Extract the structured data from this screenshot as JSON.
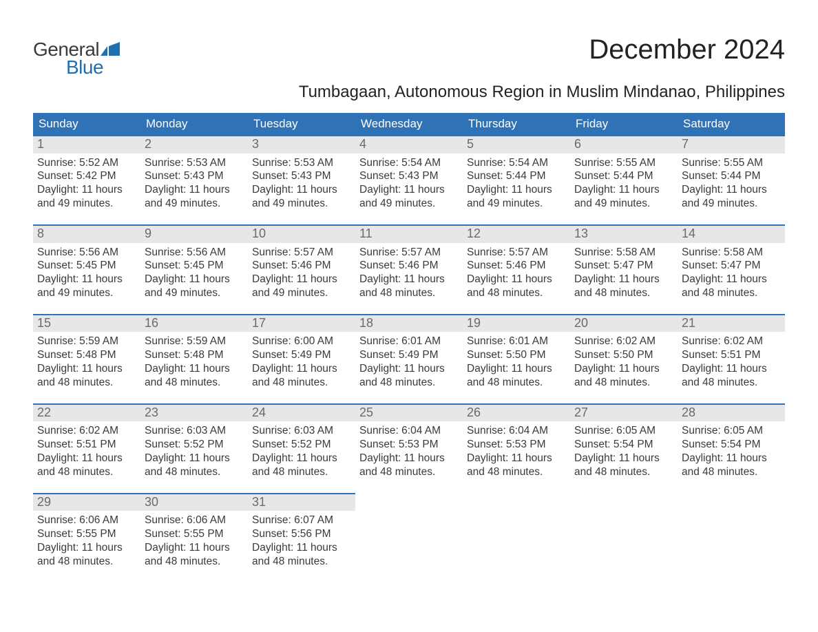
{
  "logo": {
    "word1": "General",
    "word2": "Blue",
    "icon_color": "#1f6fb2"
  },
  "title": "December 2024",
  "subtitle": "Tumbagaan, Autonomous Region in Muslim Mindanao, Philippines",
  "colors": {
    "header_bg": "#2f73b6",
    "header_text": "#ffffff",
    "daynum_bg": "#e7e7e7",
    "daynum_text": "#6a6a6a",
    "body_text": "#3a3a3a",
    "rule": "#2f73b6",
    "background": "#ffffff"
  },
  "typography": {
    "title_fontsize": 40,
    "subtitle_fontsize": 24,
    "dayheader_fontsize": 17,
    "daynum_fontsize": 18,
    "body_fontsize": 15.5
  },
  "day_headers": [
    "Sunday",
    "Monday",
    "Tuesday",
    "Wednesday",
    "Thursday",
    "Friday",
    "Saturday"
  ],
  "weeks": [
    [
      {
        "n": "1",
        "sunrise": "Sunrise: 5:52 AM",
        "sunset": "Sunset: 5:42 PM",
        "dl1": "Daylight: 11 hours",
        "dl2": "and 49 minutes."
      },
      {
        "n": "2",
        "sunrise": "Sunrise: 5:53 AM",
        "sunset": "Sunset: 5:43 PM",
        "dl1": "Daylight: 11 hours",
        "dl2": "and 49 minutes."
      },
      {
        "n": "3",
        "sunrise": "Sunrise: 5:53 AM",
        "sunset": "Sunset: 5:43 PM",
        "dl1": "Daylight: 11 hours",
        "dl2": "and 49 minutes."
      },
      {
        "n": "4",
        "sunrise": "Sunrise: 5:54 AM",
        "sunset": "Sunset: 5:43 PM",
        "dl1": "Daylight: 11 hours",
        "dl2": "and 49 minutes."
      },
      {
        "n": "5",
        "sunrise": "Sunrise: 5:54 AM",
        "sunset": "Sunset: 5:44 PM",
        "dl1": "Daylight: 11 hours",
        "dl2": "and 49 minutes."
      },
      {
        "n": "6",
        "sunrise": "Sunrise: 5:55 AM",
        "sunset": "Sunset: 5:44 PM",
        "dl1": "Daylight: 11 hours",
        "dl2": "and 49 minutes."
      },
      {
        "n": "7",
        "sunrise": "Sunrise: 5:55 AM",
        "sunset": "Sunset: 5:44 PM",
        "dl1": "Daylight: 11 hours",
        "dl2": "and 49 minutes."
      }
    ],
    [
      {
        "n": "8",
        "sunrise": "Sunrise: 5:56 AM",
        "sunset": "Sunset: 5:45 PM",
        "dl1": "Daylight: 11 hours",
        "dl2": "and 49 minutes."
      },
      {
        "n": "9",
        "sunrise": "Sunrise: 5:56 AM",
        "sunset": "Sunset: 5:45 PM",
        "dl1": "Daylight: 11 hours",
        "dl2": "and 49 minutes."
      },
      {
        "n": "10",
        "sunrise": "Sunrise: 5:57 AM",
        "sunset": "Sunset: 5:46 PM",
        "dl1": "Daylight: 11 hours",
        "dl2": "and 49 minutes."
      },
      {
        "n": "11",
        "sunrise": "Sunrise: 5:57 AM",
        "sunset": "Sunset: 5:46 PM",
        "dl1": "Daylight: 11 hours",
        "dl2": "and 48 minutes."
      },
      {
        "n": "12",
        "sunrise": "Sunrise: 5:57 AM",
        "sunset": "Sunset: 5:46 PM",
        "dl1": "Daylight: 11 hours",
        "dl2": "and 48 minutes."
      },
      {
        "n": "13",
        "sunrise": "Sunrise: 5:58 AM",
        "sunset": "Sunset: 5:47 PM",
        "dl1": "Daylight: 11 hours",
        "dl2": "and 48 minutes."
      },
      {
        "n": "14",
        "sunrise": "Sunrise: 5:58 AM",
        "sunset": "Sunset: 5:47 PM",
        "dl1": "Daylight: 11 hours",
        "dl2": "and 48 minutes."
      }
    ],
    [
      {
        "n": "15",
        "sunrise": "Sunrise: 5:59 AM",
        "sunset": "Sunset: 5:48 PM",
        "dl1": "Daylight: 11 hours",
        "dl2": "and 48 minutes."
      },
      {
        "n": "16",
        "sunrise": "Sunrise: 5:59 AM",
        "sunset": "Sunset: 5:48 PM",
        "dl1": "Daylight: 11 hours",
        "dl2": "and 48 minutes."
      },
      {
        "n": "17",
        "sunrise": "Sunrise: 6:00 AM",
        "sunset": "Sunset: 5:49 PM",
        "dl1": "Daylight: 11 hours",
        "dl2": "and 48 minutes."
      },
      {
        "n": "18",
        "sunrise": "Sunrise: 6:01 AM",
        "sunset": "Sunset: 5:49 PM",
        "dl1": "Daylight: 11 hours",
        "dl2": "and 48 minutes."
      },
      {
        "n": "19",
        "sunrise": "Sunrise: 6:01 AM",
        "sunset": "Sunset: 5:50 PM",
        "dl1": "Daylight: 11 hours",
        "dl2": "and 48 minutes."
      },
      {
        "n": "20",
        "sunrise": "Sunrise: 6:02 AM",
        "sunset": "Sunset: 5:50 PM",
        "dl1": "Daylight: 11 hours",
        "dl2": "and 48 minutes."
      },
      {
        "n": "21",
        "sunrise": "Sunrise: 6:02 AM",
        "sunset": "Sunset: 5:51 PM",
        "dl1": "Daylight: 11 hours",
        "dl2": "and 48 minutes."
      }
    ],
    [
      {
        "n": "22",
        "sunrise": "Sunrise: 6:02 AM",
        "sunset": "Sunset: 5:51 PM",
        "dl1": "Daylight: 11 hours",
        "dl2": "and 48 minutes."
      },
      {
        "n": "23",
        "sunrise": "Sunrise: 6:03 AM",
        "sunset": "Sunset: 5:52 PM",
        "dl1": "Daylight: 11 hours",
        "dl2": "and 48 minutes."
      },
      {
        "n": "24",
        "sunrise": "Sunrise: 6:03 AM",
        "sunset": "Sunset: 5:52 PM",
        "dl1": "Daylight: 11 hours",
        "dl2": "and 48 minutes."
      },
      {
        "n": "25",
        "sunrise": "Sunrise: 6:04 AM",
        "sunset": "Sunset: 5:53 PM",
        "dl1": "Daylight: 11 hours",
        "dl2": "and 48 minutes."
      },
      {
        "n": "26",
        "sunrise": "Sunrise: 6:04 AM",
        "sunset": "Sunset: 5:53 PM",
        "dl1": "Daylight: 11 hours",
        "dl2": "and 48 minutes."
      },
      {
        "n": "27",
        "sunrise": "Sunrise: 6:05 AM",
        "sunset": "Sunset: 5:54 PM",
        "dl1": "Daylight: 11 hours",
        "dl2": "and 48 minutes."
      },
      {
        "n": "28",
        "sunrise": "Sunrise: 6:05 AM",
        "sunset": "Sunset: 5:54 PM",
        "dl1": "Daylight: 11 hours",
        "dl2": "and 48 minutes."
      }
    ],
    [
      {
        "n": "29",
        "sunrise": "Sunrise: 6:06 AM",
        "sunset": "Sunset: 5:55 PM",
        "dl1": "Daylight: 11 hours",
        "dl2": "and 48 minutes."
      },
      {
        "n": "30",
        "sunrise": "Sunrise: 6:06 AM",
        "sunset": "Sunset: 5:55 PM",
        "dl1": "Daylight: 11 hours",
        "dl2": "and 48 minutes."
      },
      {
        "n": "31",
        "sunrise": "Sunrise: 6:07 AM",
        "sunset": "Sunset: 5:56 PM",
        "dl1": "Daylight: 11 hours",
        "dl2": "and 48 minutes."
      },
      null,
      null,
      null,
      null
    ]
  ]
}
